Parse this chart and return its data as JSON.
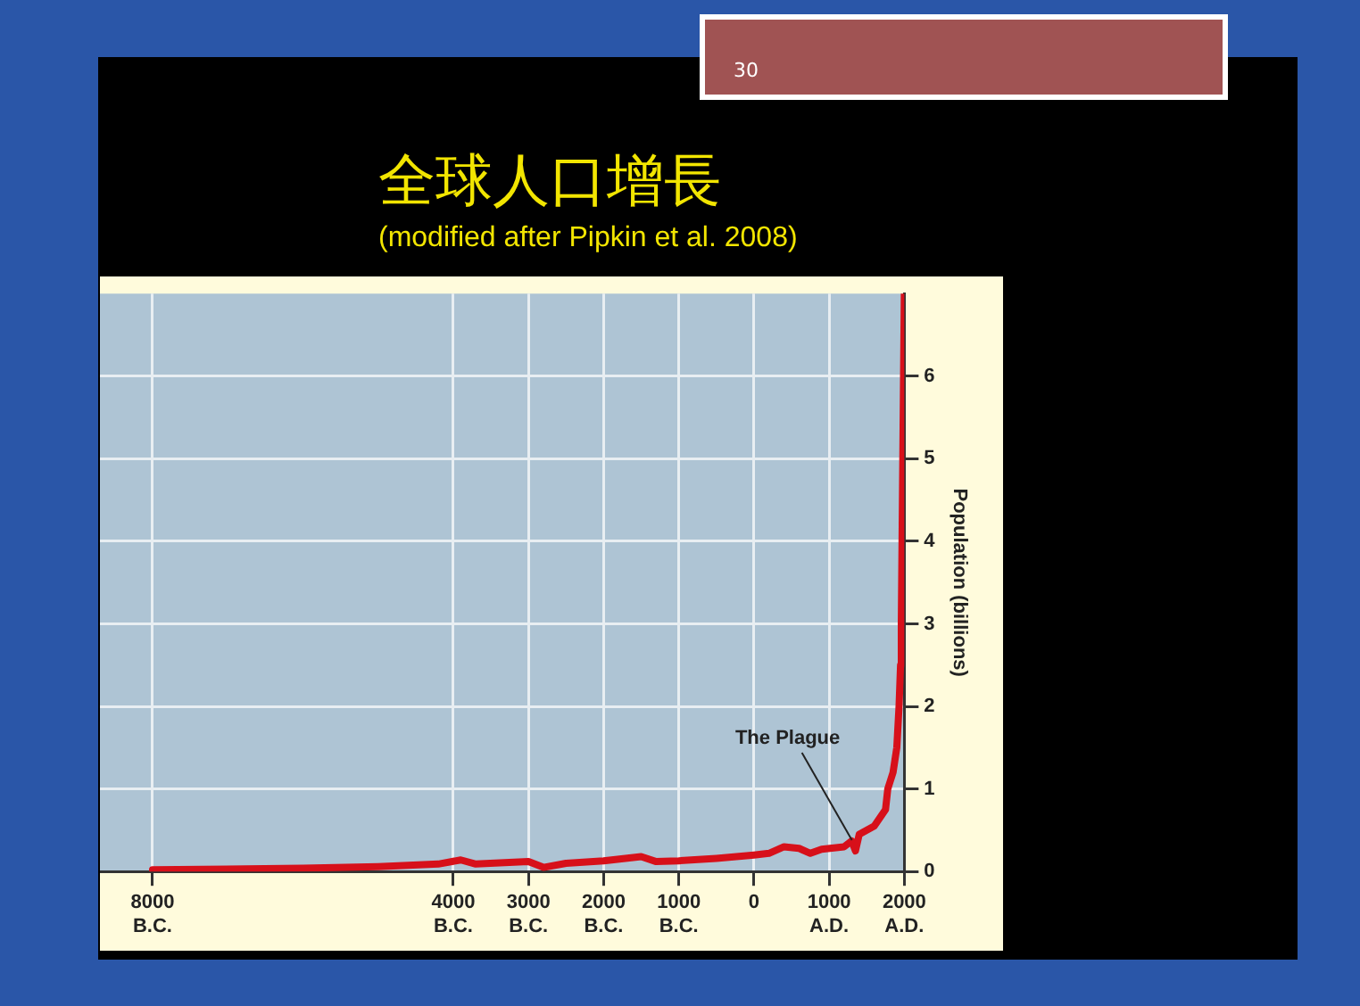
{
  "chart_data": {
    "type": "line",
    "title": "全球人口增長",
    "subtitle": "(modified after Pipkin et al. 2008)",
    "ylabel": "Population (billions)",
    "annotations": [
      "30",
      {
        "text": "The Plague",
        "x": 1350,
        "y": 0.25
      }
    ],
    "x": [
      -8000,
      -6000,
      -5000,
      -4200,
      -3900,
      -3700,
      -3000,
      -2800,
      -2500,
      -2000,
      -1500,
      -1300,
      -1000,
      -500,
      0,
      200,
      400,
      600,
      750,
      900,
      1200,
      1300,
      1350,
      1400,
      1600,
      1750,
      1780,
      1850,
      1900,
      1930,
      1950,
      1960,
      2000
    ],
    "series": [
      {
        "color": "#d7101a",
        "values": [
          0.02,
          0.04,
          0.06,
          0.09,
          0.14,
          0.09,
          0.12,
          0.05,
          0.1,
          0.13,
          0.18,
          0.12,
          0.13,
          0.16,
          0.2,
          0.22,
          0.3,
          0.28,
          0.22,
          0.27,
          0.3,
          0.37,
          0.25,
          0.45,
          0.55,
          0.75,
          1.0,
          1.2,
          1.5,
          2.0,
          2.5,
          3.0,
          7.0
        ]
      }
    ],
    "xlim": [
      -8700,
      2000
    ],
    "xticks": [
      {
        "value": -8000,
        "label": "8000 B.C."
      },
      {
        "value": -4000,
        "label": "4000 B.C."
      },
      {
        "value": -3000,
        "label": "3000 B.C."
      },
      {
        "value": -2000,
        "label": "2000 B.C."
      },
      {
        "value": -1000,
        "label": "1000 B.C."
      },
      0,
      {
        "value": 1000,
        "label": "1000 A.D."
      },
      {
        "value": 2000,
        "label": "2000 A.D."
      }
    ],
    "ylim": [
      0,
      7
    ],
    "yticks": [
      0,
      1,
      2,
      3,
      4,
      5,
      6
    ],
    "grid": true,
    "legend": false,
    "marker": "none",
    "line_style": "solid"
  }
}
